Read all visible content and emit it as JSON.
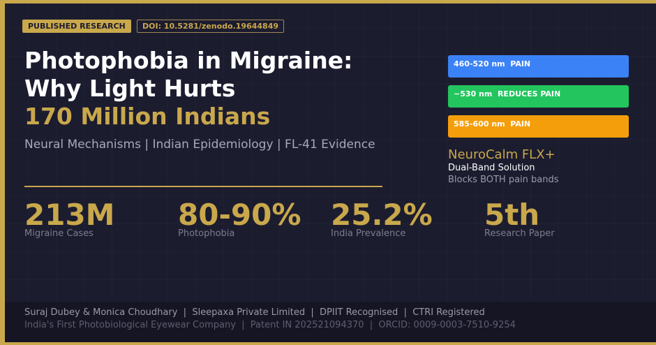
{
  "badges": [
    "PUBLISHED RESEARCH",
    "DOI: 10.5281/zenodo.19644849"
  ],
  "header": {
    "title_lines": [
      "Photophobia in Migraine:",
      "Why Light Hurts"
    ],
    "highlight": "170 Million Indians",
    "subtitle": "Neural Mechanisms | Indian Epidemiology | FL-41 Evidence"
  },
  "stats": [
    {
      "value": "213M",
      "label": "Migraine Cases"
    },
    {
      "value": "80-90%",
      "label": "Photophobia"
    },
    {
      "value": "25.2%",
      "label": "India Prevalence"
    },
    {
      "value": "5th",
      "label": "Research Paper"
    }
  ],
  "bands": [
    "460-520 nm  PAIN",
    "~530 nm  REDUCES PAIN",
    "585-600 nm  PAIN"
  ],
  "product": {
    "name": "NeuroCalm FLX+",
    "tagline": "Dual-Band Solution",
    "note": "Blocks BOTH pain bands"
  },
  "footer": {
    "line1": "Suraj Dubey & Monica Choudhary  |  Sleepaxa Private Limited  |  DPIIT Recognised  |  CTRI Registered",
    "line2": "India's First Photobiological Eyewear Company  |  Patent IN 202521094370  |  ORCID: 0009-0003-7510-9254"
  }
}
